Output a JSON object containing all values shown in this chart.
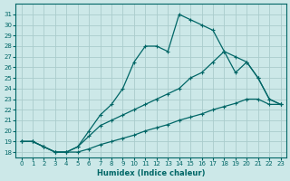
{
  "xlabel": "Humidex (Indice chaleur)",
  "bg_color": "#cce8e8",
  "grid_color": "#aacccc",
  "line_color": "#006666",
  "xlim": [
    -0.5,
    23.5
  ],
  "ylim": [
    17.5,
    32.0
  ],
  "line1_x": [
    0,
    1,
    2,
    3,
    4,
    5,
    6,
    7,
    8,
    9,
    10,
    11,
    12,
    13,
    14,
    15,
    16,
    17,
    18,
    19,
    20,
    21,
    22,
    23
  ],
  "line1_y": [
    19,
    19,
    18.5,
    18,
    18,
    18.5,
    20,
    21.5,
    22.5,
    24,
    26.5,
    28,
    28,
    27.5,
    31,
    30.5,
    30,
    29.5,
    27.5,
    25.5,
    26.5,
    25,
    23,
    22.5
  ],
  "line2_x": [
    0,
    1,
    2,
    3,
    4,
    5,
    6,
    7,
    8,
    9,
    10,
    11,
    12,
    13,
    14,
    15,
    16,
    17,
    18,
    19,
    20,
    21,
    22,
    23
  ],
  "line2_y": [
    19,
    19,
    18.5,
    18,
    18,
    18.5,
    19.5,
    20.5,
    21,
    21.5,
    22,
    22.5,
    23,
    23.5,
    24,
    25,
    25.5,
    26.5,
    27.5,
    27,
    26.5,
    25,
    23,
    22.5
  ],
  "line3_x": [
    0,
    1,
    2,
    3,
    4,
    5,
    6,
    7,
    8,
    9,
    10,
    11,
    12,
    13,
    14,
    15,
    16,
    17,
    18,
    19,
    20,
    21,
    22,
    23
  ],
  "line3_y": [
    19,
    19,
    18.5,
    18,
    18,
    18,
    18.3,
    18.7,
    19,
    19.3,
    19.6,
    20,
    20.3,
    20.6,
    21,
    21.3,
    21.6,
    22,
    22.3,
    22.6,
    23,
    23,
    22.5,
    22.5
  ],
  "xticks": [
    0,
    1,
    2,
    3,
    4,
    5,
    6,
    7,
    8,
    9,
    10,
    11,
    12,
    13,
    14,
    15,
    16,
    17,
    18,
    19,
    20,
    21,
    22,
    23
  ],
  "yticks": [
    18,
    19,
    20,
    21,
    22,
    23,
    24,
    25,
    26,
    27,
    28,
    29,
    30,
    31
  ]
}
